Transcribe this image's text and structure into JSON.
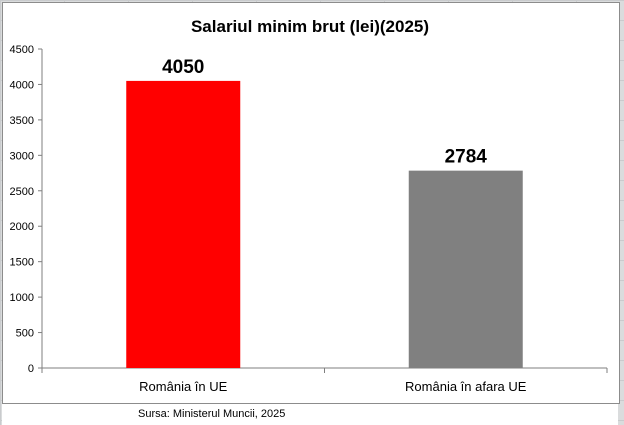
{
  "chart_data": {
    "type": "bar",
    "title": "Salariul minim brut (lei)(2025)",
    "categories": [
      "România în UE",
      "România în afara UE"
    ],
    "values": [
      4050,
      2784
    ],
    "colors": [
      "#ff0000",
      "#808080"
    ],
    "ylim": [
      0,
      4500
    ],
    "yticks": [
      0,
      500,
      1000,
      1500,
      2000,
      2500,
      3000,
      3500,
      4000,
      4500
    ],
    "grid": false,
    "legend": "none"
  },
  "source": "Sursa: Ministerul Muncii, 2025"
}
